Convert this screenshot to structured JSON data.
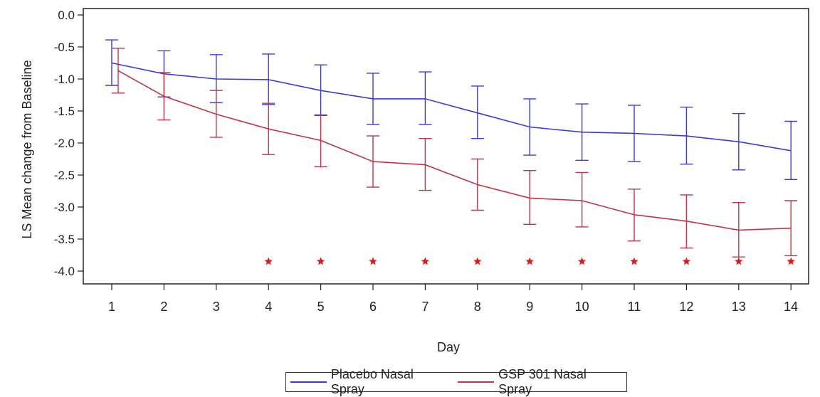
{
  "chart_data": {
    "type": "line",
    "title": "",
    "xlabel": "Day",
    "ylabel": "LS Mean change from Baseline",
    "x": [
      1,
      2,
      3,
      4,
      5,
      6,
      7,
      8,
      9,
      10,
      11,
      12,
      13,
      14
    ],
    "x_tick_labels": [
      "1",
      "2",
      "3",
      "4",
      "5",
      "6",
      "7",
      "8",
      "9",
      "10",
      "11",
      "12",
      "13",
      "14"
    ],
    "ylim": [
      -4.2,
      0.1
    ],
    "y_ticks": [
      0.0,
      -0.5,
      -1.0,
      -1.5,
      -2.0,
      -2.5,
      -3.0,
      -3.5,
      -4.0
    ],
    "y_tick_labels": [
      "0.0",
      "-0.5",
      "-1.0",
      "-1.5",
      "-2.0",
      "-2.5",
      "-3.0",
      "-3.5",
      "-4.0"
    ],
    "grid": false,
    "legend_position": "bottom",
    "series": [
      {
        "name": "Placebo Nasal Spray",
        "color": "#3b3bd6",
        "values": [
          -0.75,
          -0.92,
          -1.0,
          -1.01,
          -1.18,
          -1.31,
          -1.31,
          -1.53,
          -1.75,
          -1.83,
          -1.85,
          -1.89,
          -1.98,
          -2.12
        ],
        "lower": [
          -1.1,
          -1.28,
          -1.37,
          -1.4,
          -1.57,
          -1.71,
          -1.71,
          -1.93,
          -2.19,
          -2.27,
          -2.29,
          -2.33,
          -2.42,
          -2.57
        ],
        "upper": [
          -0.39,
          -0.56,
          -0.62,
          -0.61,
          -0.78,
          -0.91,
          -0.89,
          -1.11,
          -1.31,
          -1.39,
          -1.41,
          -1.44,
          -1.54,
          -1.66
        ]
      },
      {
        "name": "GSP 301 Nasal Spray",
        "color": "#c0354a",
        "values": [
          -0.87,
          -1.27,
          -1.55,
          -1.78,
          -1.96,
          -2.29,
          -2.34,
          -2.65,
          -2.86,
          -2.9,
          -3.12,
          -3.22,
          -3.36,
          -3.33
        ],
        "lower": [
          -1.22,
          -1.64,
          -1.91,
          -2.18,
          -2.37,
          -2.69,
          -2.74,
          -3.05,
          -3.27,
          -3.31,
          -3.53,
          -3.64,
          -3.78,
          -3.76
        ],
        "upper": [
          -0.52,
          -0.9,
          -1.18,
          -1.38,
          -1.56,
          -1.89,
          -1.93,
          -2.25,
          -2.43,
          -2.46,
          -2.72,
          -2.81,
          -2.93,
          -2.9
        ]
      }
    ],
    "significance_markers": {
      "color": "#e01818",
      "y": -3.85,
      "days": [
        4,
        5,
        6,
        7,
        8,
        9,
        10,
        11,
        12,
        13,
        14
      ]
    }
  }
}
